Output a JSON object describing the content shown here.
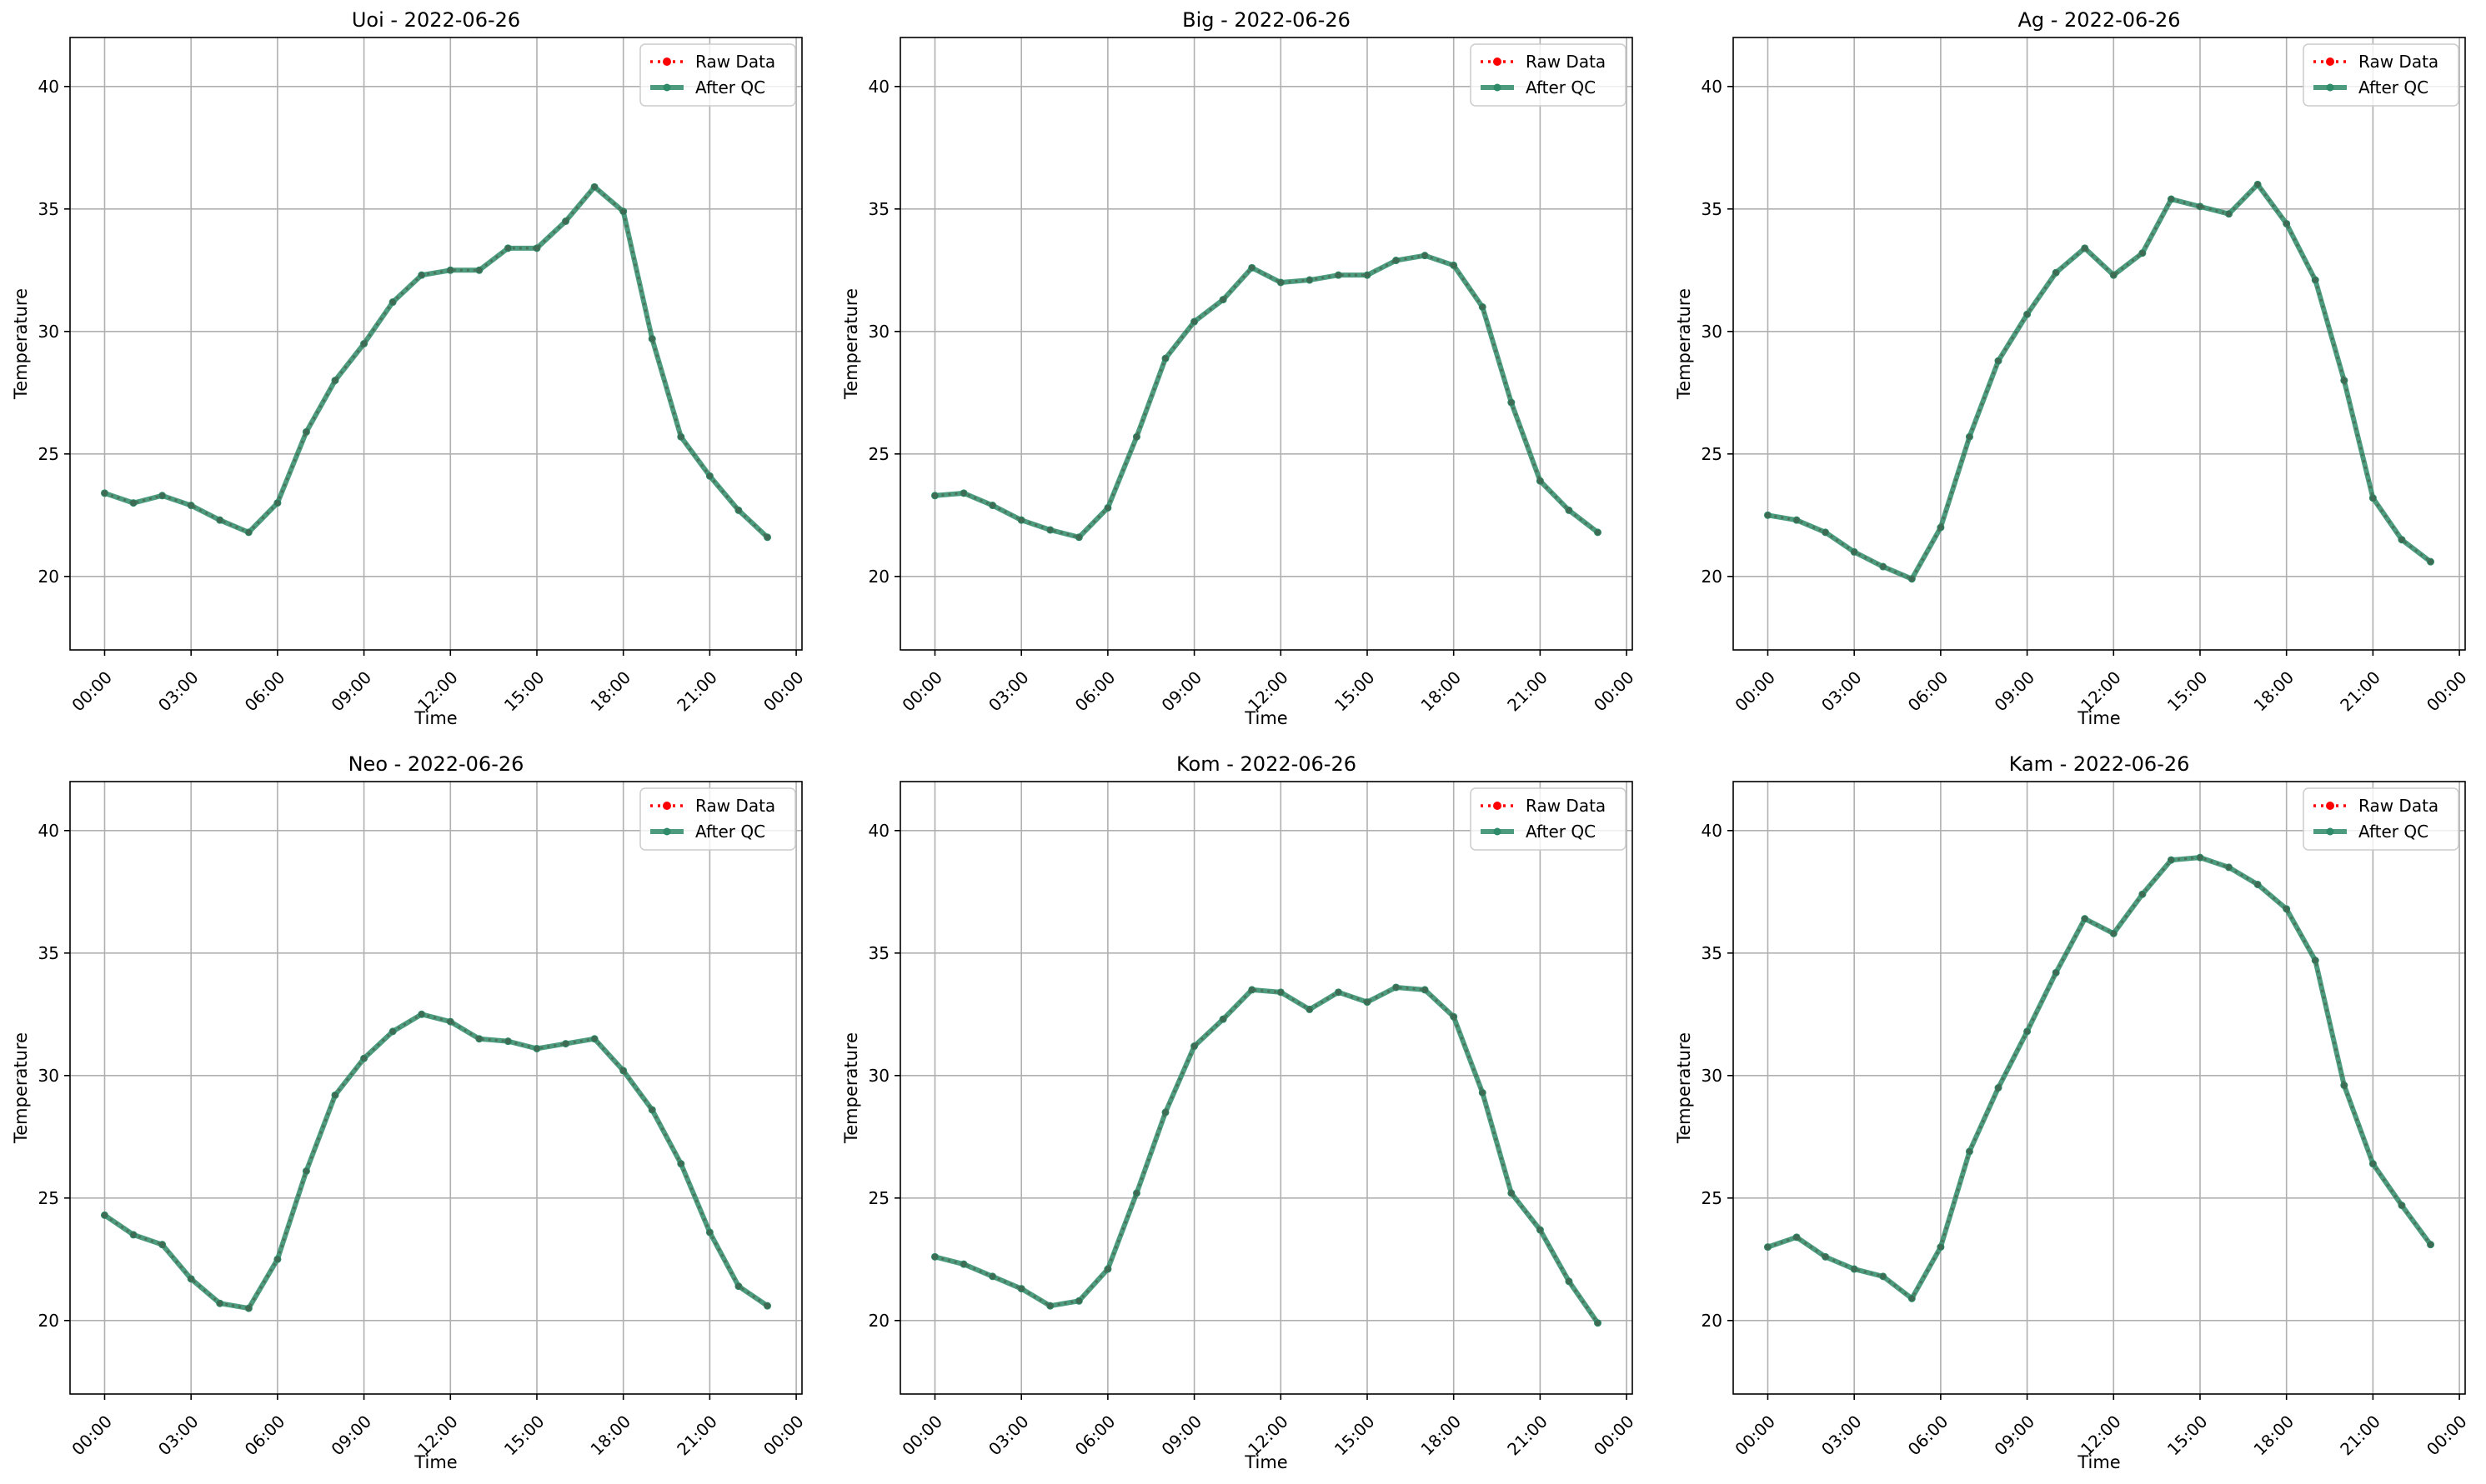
{
  "figure": {
    "series_names": {
      "raw": "Raw Data",
      "qc": "After QC"
    },
    "colors": {
      "raw": "#ff0000",
      "qc": "#2e8b69",
      "grid": "#b0b0b0",
      "axis": "#000000"
    }
  },
  "chart_data": [
    {
      "type": "line",
      "title": "Uoi - 2022-06-26",
      "xlabel": "Time",
      "ylabel": "Temperature",
      "date": "2022-06-26",
      "x_ticks": [
        "00:00",
        "03:00",
        "06:00",
        "09:00",
        "12:00",
        "15:00",
        "18:00",
        "21:00",
        "00:00"
      ],
      "y_ticks": [
        20,
        25,
        30,
        35,
        40
      ],
      "ylim": [
        17,
        42
      ],
      "xlim_hours": [
        -1.2,
        24.2
      ],
      "grid": true,
      "legend": "top-right",
      "x": [
        "00:00",
        "01:00",
        "02:00",
        "03:00",
        "04:00",
        "05:00",
        "06:00",
        "07:00",
        "08:00",
        "09:00",
        "10:00",
        "11:00",
        "12:00",
        "13:00",
        "14:00",
        "15:00",
        "16:00",
        "17:00",
        "18:00",
        "19:00",
        "20:00",
        "21:00",
        "22:00",
        "23:00"
      ],
      "series": [
        {
          "name": "Raw Data",
          "values": [
            23.4,
            23.0,
            23.3,
            22.9,
            22.3,
            21.8,
            23.0,
            25.9,
            28.0,
            29.5,
            31.2,
            32.3,
            32.5,
            32.5,
            33.4,
            33.4,
            34.5,
            35.9,
            34.9,
            29.7,
            25.7,
            24.1,
            22.7,
            21.6
          ]
        },
        {
          "name": "After QC",
          "values": [
            23.4,
            23.0,
            23.3,
            22.9,
            22.3,
            21.8,
            23.0,
            25.9,
            28.0,
            29.5,
            31.2,
            32.3,
            32.5,
            32.5,
            33.4,
            33.4,
            34.5,
            35.9,
            34.9,
            29.7,
            25.7,
            24.1,
            22.7,
            21.6
          ]
        }
      ]
    },
    {
      "type": "line",
      "title": "Big - 2022-06-26",
      "xlabel": "Time",
      "ylabel": "Temperature",
      "date": "2022-06-26",
      "x_ticks": [
        "00:00",
        "03:00",
        "06:00",
        "09:00",
        "12:00",
        "15:00",
        "18:00",
        "21:00",
        "00:00"
      ],
      "y_ticks": [
        20,
        25,
        30,
        35,
        40
      ],
      "ylim": [
        17,
        42
      ],
      "xlim_hours": [
        -1.2,
        24.2
      ],
      "grid": true,
      "legend": "top-right",
      "x": [
        "00:00",
        "01:00",
        "02:00",
        "03:00",
        "04:00",
        "05:00",
        "06:00",
        "07:00",
        "08:00",
        "09:00",
        "10:00",
        "11:00",
        "12:00",
        "13:00",
        "14:00",
        "15:00",
        "16:00",
        "17:00",
        "18:00",
        "19:00",
        "20:00",
        "21:00",
        "22:00",
        "23:00"
      ],
      "series": [
        {
          "name": "Raw Data",
          "values": [
            23.3,
            23.4,
            22.9,
            22.3,
            21.9,
            21.6,
            22.8,
            25.7,
            28.9,
            30.4,
            31.3,
            32.6,
            32.0,
            32.1,
            32.3,
            32.3,
            32.9,
            33.1,
            32.7,
            31.0,
            27.1,
            23.9,
            22.7,
            21.8
          ]
        },
        {
          "name": "After QC",
          "values": [
            23.3,
            23.4,
            22.9,
            22.3,
            21.9,
            21.6,
            22.8,
            25.7,
            28.9,
            30.4,
            31.3,
            32.6,
            32.0,
            32.1,
            32.3,
            32.3,
            32.9,
            33.1,
            32.7,
            31.0,
            27.1,
            23.9,
            22.7,
            21.8
          ]
        }
      ]
    },
    {
      "type": "line",
      "title": "Ag - 2022-06-26",
      "xlabel": "Time",
      "ylabel": "Temperature",
      "date": "2022-06-26",
      "x_ticks": [
        "00:00",
        "03:00",
        "06:00",
        "09:00",
        "12:00",
        "15:00",
        "18:00",
        "21:00",
        "00:00"
      ],
      "y_ticks": [
        20,
        25,
        30,
        35,
        40
      ],
      "ylim": [
        17,
        42
      ],
      "xlim_hours": [
        -1.2,
        24.2
      ],
      "grid": true,
      "legend": "top-right",
      "x": [
        "00:00",
        "01:00",
        "02:00",
        "03:00",
        "04:00",
        "05:00",
        "06:00",
        "07:00",
        "08:00",
        "09:00",
        "10:00",
        "11:00",
        "12:00",
        "13:00",
        "14:00",
        "15:00",
        "16:00",
        "17:00",
        "18:00",
        "19:00",
        "20:00",
        "21:00",
        "22:00",
        "23:00"
      ],
      "series": [
        {
          "name": "Raw Data",
          "values": [
            22.5,
            22.3,
            21.8,
            21.0,
            20.4,
            19.9,
            22.0,
            25.7,
            28.8,
            30.7,
            32.4,
            33.4,
            32.3,
            33.2,
            35.4,
            35.1,
            34.8,
            36.0,
            34.4,
            32.1,
            28.0,
            23.2,
            21.5,
            20.6
          ]
        },
        {
          "name": "After QC",
          "values": [
            22.5,
            22.3,
            21.8,
            21.0,
            20.4,
            19.9,
            22.0,
            25.7,
            28.8,
            30.7,
            32.4,
            33.4,
            32.3,
            33.2,
            35.4,
            35.1,
            34.8,
            36.0,
            34.4,
            32.1,
            28.0,
            23.2,
            21.5,
            20.6
          ]
        }
      ]
    },
    {
      "type": "line",
      "title": "Neo - 2022-06-26",
      "xlabel": "Time",
      "ylabel": "Temperature",
      "date": "2022-06-26",
      "x_ticks": [
        "00:00",
        "03:00",
        "06:00",
        "09:00",
        "12:00",
        "15:00",
        "18:00",
        "21:00",
        "00:00"
      ],
      "y_ticks": [
        20,
        25,
        30,
        35,
        40
      ],
      "ylim": [
        17,
        42
      ],
      "xlim_hours": [
        -1.2,
        24.2
      ],
      "grid": true,
      "legend": "top-right",
      "x": [
        "00:00",
        "01:00",
        "02:00",
        "03:00",
        "04:00",
        "05:00",
        "06:00",
        "07:00",
        "08:00",
        "09:00",
        "10:00",
        "11:00",
        "12:00",
        "13:00",
        "14:00",
        "15:00",
        "16:00",
        "17:00",
        "18:00",
        "19:00",
        "20:00",
        "21:00",
        "22:00",
        "23:00"
      ],
      "series": [
        {
          "name": "Raw Data",
          "values": [
            24.3,
            23.5,
            23.1,
            21.7,
            20.7,
            20.5,
            22.5,
            26.1,
            29.2,
            30.7,
            31.8,
            32.5,
            32.2,
            31.5,
            31.4,
            31.1,
            31.3,
            31.5,
            30.2,
            28.6,
            26.4,
            23.6,
            21.4,
            20.6
          ]
        },
        {
          "name": "After QC",
          "values": [
            24.3,
            23.5,
            23.1,
            21.7,
            20.7,
            20.5,
            22.5,
            26.1,
            29.2,
            30.7,
            31.8,
            32.5,
            32.2,
            31.5,
            31.4,
            31.1,
            31.3,
            31.5,
            30.2,
            28.6,
            26.4,
            23.6,
            21.4,
            20.6
          ]
        }
      ]
    },
    {
      "type": "line",
      "title": "Kom - 2022-06-26",
      "xlabel": "Time",
      "ylabel": "Temperature",
      "date": "2022-06-26",
      "x_ticks": [
        "00:00",
        "03:00",
        "06:00",
        "09:00",
        "12:00",
        "15:00",
        "18:00",
        "21:00",
        "00:00"
      ],
      "y_ticks": [
        20,
        25,
        30,
        35,
        40
      ],
      "ylim": [
        17,
        42
      ],
      "xlim_hours": [
        -1.2,
        24.2
      ],
      "grid": true,
      "legend": "top-right",
      "x": [
        "00:00",
        "01:00",
        "02:00",
        "03:00",
        "04:00",
        "05:00",
        "06:00",
        "07:00",
        "08:00",
        "09:00",
        "10:00",
        "11:00",
        "12:00",
        "13:00",
        "14:00",
        "15:00",
        "16:00",
        "17:00",
        "18:00",
        "19:00",
        "20:00",
        "21:00",
        "22:00",
        "23:00"
      ],
      "series": [
        {
          "name": "Raw Data",
          "values": [
            22.6,
            22.3,
            21.8,
            21.3,
            20.6,
            20.8,
            22.1,
            25.2,
            28.5,
            31.2,
            32.3,
            33.5,
            33.4,
            32.7,
            33.4,
            33.0,
            33.6,
            33.5,
            32.4,
            29.3,
            25.2,
            23.7,
            21.6,
            19.9
          ]
        },
        {
          "name": "After QC",
          "values": [
            22.6,
            22.3,
            21.8,
            21.3,
            20.6,
            20.8,
            22.1,
            25.2,
            28.5,
            31.2,
            32.3,
            33.5,
            33.4,
            32.7,
            33.4,
            33.0,
            33.6,
            33.5,
            32.4,
            29.3,
            25.2,
            23.7,
            21.6,
            19.9
          ]
        }
      ]
    },
    {
      "type": "line",
      "title": "Kam - 2022-06-26",
      "xlabel": "Time",
      "ylabel": "Temperature",
      "date": "2022-06-26",
      "x_ticks": [
        "00:00",
        "03:00",
        "06:00",
        "09:00",
        "12:00",
        "15:00",
        "18:00",
        "21:00",
        "00:00"
      ],
      "y_ticks": [
        20,
        25,
        30,
        35,
        40
      ],
      "ylim": [
        17,
        42
      ],
      "xlim_hours": [
        -1.2,
        24.2
      ],
      "grid": true,
      "legend": "top-right",
      "x": [
        "00:00",
        "01:00",
        "02:00",
        "03:00",
        "04:00",
        "05:00",
        "06:00",
        "07:00",
        "08:00",
        "09:00",
        "10:00",
        "11:00",
        "12:00",
        "13:00",
        "14:00",
        "15:00",
        "16:00",
        "17:00",
        "18:00",
        "19:00",
        "20:00",
        "21:00",
        "22:00",
        "23:00"
      ],
      "series": [
        {
          "name": "Raw Data",
          "values": [
            23.0,
            23.4,
            22.6,
            22.1,
            21.8,
            20.9,
            23.0,
            26.9,
            29.5,
            31.8,
            34.2,
            36.4,
            35.8,
            37.4,
            38.8,
            38.9,
            38.5,
            37.8,
            36.8,
            34.7,
            29.6,
            26.4,
            24.7,
            23.1
          ]
        },
        {
          "name": "After QC",
          "values": [
            23.0,
            23.4,
            22.6,
            22.1,
            21.8,
            20.9,
            23.0,
            26.9,
            29.5,
            31.8,
            34.2,
            36.4,
            35.8,
            37.4,
            38.8,
            38.9,
            38.5,
            37.8,
            36.8,
            34.7,
            29.6,
            26.4,
            24.7,
            23.1
          ]
        }
      ]
    }
  ]
}
